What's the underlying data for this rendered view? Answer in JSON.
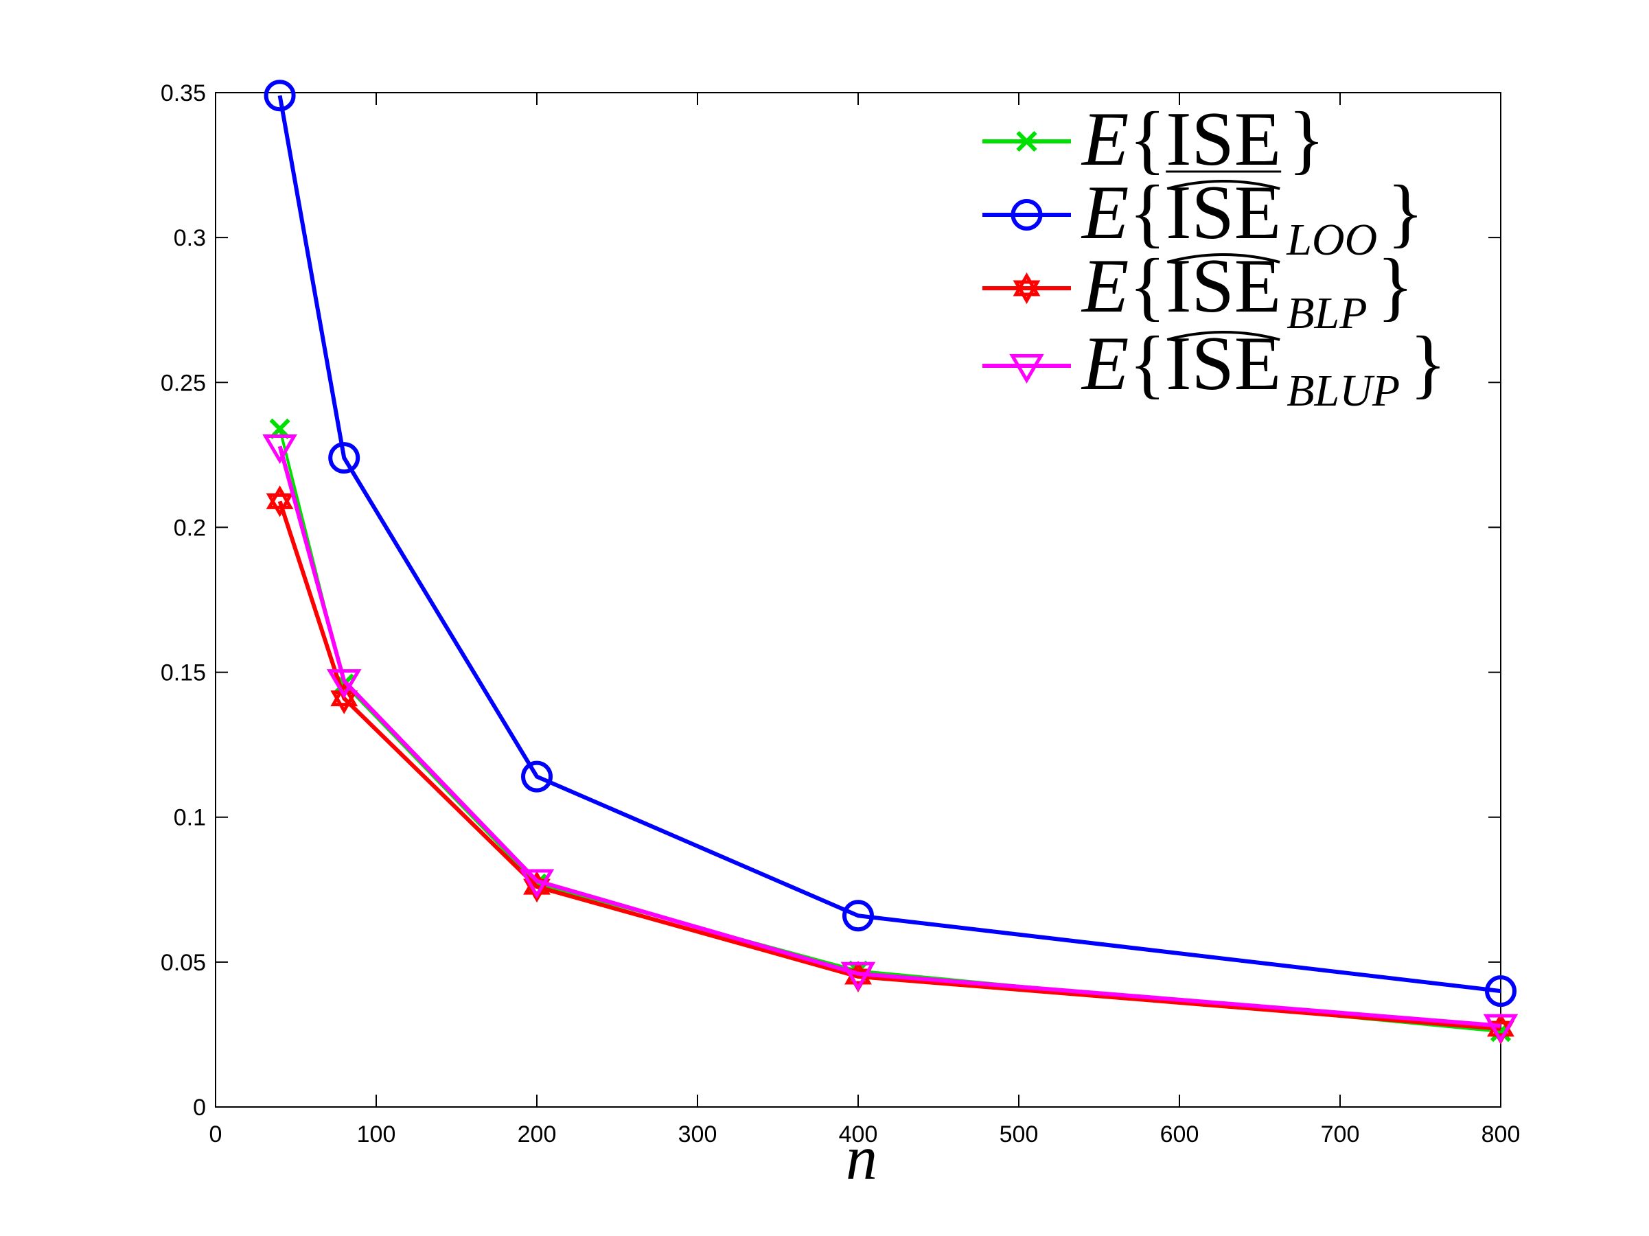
{
  "chart_data": {
    "type": "line",
    "title": "",
    "xlabel": "n",
    "ylabel": "",
    "xlim": [
      0,
      800
    ],
    "ylim": [
      0,
      0.35
    ],
    "xticks": [
      0,
      100,
      200,
      300,
      400,
      500,
      600,
      700,
      800
    ],
    "xtick_labels": [
      "0",
      "100",
      "200",
      "300",
      "400",
      "500",
      "600",
      "700",
      "800"
    ],
    "yticks": [
      0,
      0.05,
      0.1,
      0.15,
      0.2,
      0.25,
      0.3,
      0.35
    ],
    "ytick_labels": [
      "0",
      "0.05",
      "0.1",
      "0.15",
      "0.2",
      "0.25",
      "0.3",
      "0.35"
    ],
    "grid": false,
    "legend_position": "top-right",
    "x": [
      40,
      80,
      200,
      400,
      800
    ],
    "series": [
      {
        "legend": {
          "prefix": "E{",
          "main": "ISE",
          "hat": false,
          "subscript": "",
          "suffix": "}"
        },
        "color": "#00e000",
        "marker": "x",
        "y": [
          0.234,
          0.146,
          0.077,
          0.047,
          0.026
        ]
      },
      {
        "legend": {
          "prefix": "E{",
          "main": "ISE",
          "hat": true,
          "subscript": "LOO",
          "suffix": "}"
        },
        "color": "#0000ff",
        "marker": "circle",
        "y": [
          0.349,
          0.224,
          0.114,
          0.066,
          0.04
        ]
      },
      {
        "legend": {
          "prefix": "E{",
          "main": "ISE",
          "hat": true,
          "subscript": "BLP",
          "suffix": "}"
        },
        "color": "#ff0000",
        "marker": "hexagram",
        "y": [
          0.209,
          0.141,
          0.076,
          0.045,
          0.027
        ]
      },
      {
        "legend": {
          "prefix": "E{",
          "main": "ISE",
          "hat": true,
          "subscript": "BLUP",
          "suffix": "}"
        },
        "color": "#ff00ff",
        "marker": "triangle-down",
        "y": [
          0.228,
          0.147,
          0.078,
          0.046,
          0.028
        ]
      }
    ]
  }
}
